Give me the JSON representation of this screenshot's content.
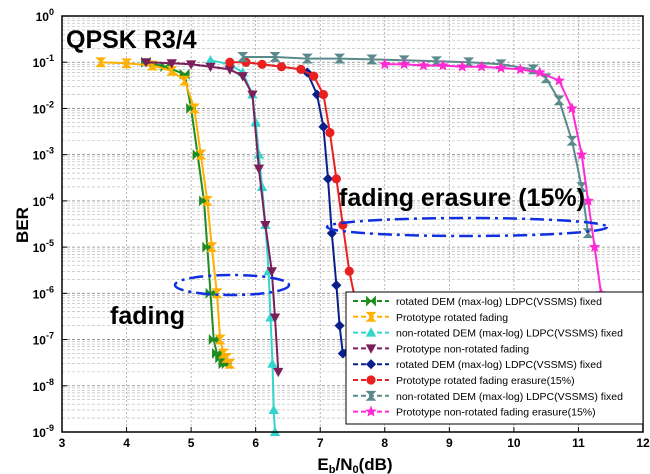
{
  "chart_data": {
    "type": "line",
    "title": "QPSK R3/4",
    "xlabel": "E_b/N_0(dB)",
    "ylabel": "BER",
    "xlim": [
      3,
      12
    ],
    "ylim_log10": [
      -9,
      0
    ],
    "y_scale": "log",
    "x_ticks": [
      3,
      4,
      5,
      6,
      7,
      8,
      9,
      10,
      11,
      12
    ],
    "y_ticks": [
      -9,
      -8,
      -7,
      -6,
      -5,
      -4,
      -3,
      -2,
      -1,
      0
    ],
    "grid": true,
    "legend_position": "bottom-right",
    "annotations": [
      {
        "text": "fading",
        "x": 4.3,
        "y": 1e-07
      },
      {
        "text": "fading erasure (15%)",
        "x": 7.3,
        "y": 1.5e-05
      }
    ],
    "series": [
      {
        "name": "rotated DEM (max-log) LDPC(VSSMS) fixed",
        "color": "#1e8c1e",
        "marker": "bowtie",
        "x": [
          4.3,
          4.6,
          4.9,
          5.0,
          5.1,
          5.2,
          5.25,
          5.3,
          5.35,
          5.4,
          5.45,
          5.5,
          5.55
        ],
        "y": [
          0.1,
          0.08,
          0.055,
          0.01,
          0.001,
          0.0001,
          1e-05,
          1e-06,
          1e-07,
          5e-08,
          4e-08,
          3e-08,
          3e-08
        ]
      },
      {
        "name": "Prototype rotated fading",
        "color": "#ffb000",
        "marker": "hourglass",
        "x": [
          3.6,
          4.0,
          4.4,
          4.7,
          4.9,
          5.05,
          5.15,
          5.25,
          5.32,
          5.4,
          5.45,
          5.5,
          5.55,
          5.6
        ],
        "y": [
          0.1,
          0.095,
          0.085,
          0.065,
          0.04,
          0.01,
          0.001,
          0.0001,
          1e-05,
          1e-06,
          1e-07,
          5e-08,
          4e-08,
          3e-08
        ]
      },
      {
        "name": "non-rotated DEM (max-log) LDPC(VSSMS) fixed",
        "color": "#33d6cc",
        "marker": "triangle-up",
        "x": [
          5.3,
          5.6,
          5.8,
          5.95,
          6.0,
          6.05,
          6.1,
          6.15,
          6.2,
          6.23,
          6.26,
          6.28,
          6.3
        ],
        "y": [
          0.11,
          0.09,
          0.06,
          0.02,
          0.005,
          0.001,
          0.0002,
          3e-05,
          3e-06,
          3e-07,
          3e-08,
          3e-09,
          1e-09
        ]
      },
      {
        "name": "Prototype non-rotated fading",
        "color": "#7b1f5b",
        "marker": "triangle-down",
        "x": [
          4.3,
          4.7,
          5.0,
          5.3,
          5.6,
          5.8,
          5.95,
          6.05,
          6.15,
          6.25,
          6.3,
          6.35
        ],
        "y": [
          0.1,
          0.095,
          0.09,
          0.08,
          0.07,
          0.05,
          0.02,
          0.0005,
          3e-05,
          3e-06,
          3e-07,
          2e-08
        ]
      },
      {
        "name": "rotated DEM (max-log) LDPC(VSSMS) fixed",
        "color": "#0b1f8a",
        "marker": "diamond",
        "x": [
          6.8,
          6.95,
          7.05,
          7.12,
          7.18,
          7.25,
          7.3,
          7.35,
          7.45
        ],
        "y": [
          0.06,
          0.02,
          0.004,
          0.0003,
          2e-05,
          1.5e-06,
          2e-07,
          5e-08,
          6e-08
        ]
      },
      {
        "name": "Prototype rotated fading erasure(15%)",
        "color": "#e82020",
        "marker": "circle",
        "x": [
          5.6,
          5.85,
          6.1,
          6.4,
          6.7,
          6.9,
          7.05,
          7.15,
          7.25,
          7.35,
          7.45,
          7.6,
          7.8,
          8.05
        ],
        "y": [
          0.1,
          0.1,
          0.09,
          0.08,
          0.07,
          0.05,
          0.02,
          0.003,
          0.0003,
          3e-05,
          3e-06,
          3e-07,
          6e-08,
          4e-08
        ]
      },
      {
        "name": "non-rotated DEM (max-log) LDPC(VSSMS) fixed",
        "color": "#5a8a8c",
        "marker": "hourglass",
        "x": [
          5.8,
          6.3,
          6.8,
          7.3,
          7.8,
          8.3,
          8.8,
          9.3,
          9.8,
          10.3,
          10.5,
          10.7,
          10.9,
          11.05,
          11.15
        ],
        "y": [
          0.13,
          0.13,
          0.12,
          0.12,
          0.115,
          0.11,
          0.105,
          0.1,
          0.09,
          0.07,
          0.045,
          0.015,
          0.002,
          0.0002,
          2e-05
        ]
      },
      {
        "name": "Prototype non-rotated fading erasure(15%)",
        "color": "#ff2ad4",
        "marker": "star",
        "x": [
          8.0,
          8.3,
          8.6,
          8.9,
          9.2,
          9.5,
          9.8,
          10.1,
          10.4,
          10.7,
          10.9,
          11.05,
          11.15,
          11.25,
          11.35,
          11.5
        ],
        "y": [
          0.09,
          0.09,
          0.085,
          0.085,
          0.08,
          0.08,
          0.075,
          0.07,
          0.06,
          0.04,
          0.01,
          0.001,
          0.0001,
          1e-05,
          1e-06,
          1e-07
        ]
      }
    ]
  }
}
